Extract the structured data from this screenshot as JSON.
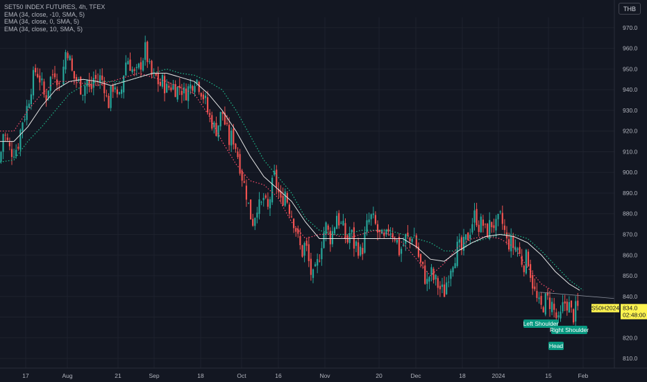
{
  "legend": {
    "title": "SET50 INDEX FUTURES, 4h, TFEX",
    "ema_lines": [
      "EMA (34, close, -10, SMA, 5)",
      "EMA (34, close, 0, SMA, 5)",
      "EMA (34, close, 10, SMA, 5)"
    ]
  },
  "currency": "THB",
  "symbol_tag": "S50H2024",
  "price_tag": {
    "price": "834.0",
    "countdown": "02:48:00"
  },
  "pattern_labels": {
    "left": "Left Shoulder",
    "right": "Right Shoulder",
    "head": "Head"
  },
  "colors": {
    "background": "#131722",
    "bull": "#26a69a",
    "bear": "#ef5350",
    "ema_main": "#e8e8e8",
    "ema_minus": "#ff4d6d",
    "ema_plus": "#1fbf8f",
    "price_tag": "#fff44f",
    "pattern_tag": "#089981"
  },
  "chart_data": {
    "type": "candlestick",
    "y_axis": {
      "range": [
        807,
        975
      ],
      "ticks": [
        "970.0",
        "960.0",
        "950.0",
        "940.0",
        "930.0",
        "920.0",
        "910.0",
        "900.0",
        "890.0",
        "880.0",
        "870.0",
        "860.0",
        "850.0",
        "840.0",
        "830.0",
        "820.0",
        "810.0"
      ]
    },
    "x_axis": {
      "labels": [
        "17",
        "Aug",
        "21",
        "Sep",
        "18",
        "Oct",
        "16",
        "Nov",
        "20",
        "Dec",
        "18",
        "2024",
        "15",
        "Feb"
      ]
    },
    "series": [
      {
        "kind": "close-path",
        "values": [
          [
            0,
            905
          ],
          [
            3,
            915
          ],
          [
            5,
            920
          ],
          [
            10,
            915
          ],
          [
            15,
            910
          ],
          [
            25,
            912
          ],
          [
            32,
            925
          ],
          [
            38,
            930
          ],
          [
            45,
            942
          ],
          [
            52,
            950
          ],
          [
            58,
            945
          ],
          [
            65,
            935
          ],
          [
            72,
            945
          ],
          [
            80,
            950
          ],
          [
            86,
            940
          ],
          [
            92,
            952
          ],
          [
            96,
            962
          ],
          [
            100,
            955
          ],
          [
            105,
            946
          ],
          [
            110,
            945
          ],
          [
            115,
            942
          ],
          [
            120,
            940
          ],
          [
            125,
            945
          ],
          [
            130,
            938
          ],
          [
            135,
            946
          ],
          [
            140,
            944
          ],
          [
            145,
            946
          ],
          [
            150,
            943
          ],
          [
            155,
            932
          ],
          [
            160,
            938
          ],
          [
            165,
            945
          ],
          [
            170,
            932
          ],
          [
            175,
            940
          ],
          [
            180,
            953
          ],
          [
            185,
            955
          ],
          [
            190,
            950
          ],
          [
            195,
            946
          ],
          [
            200,
            950
          ],
          [
            205,
            955
          ],
          [
            210,
            960
          ],
          [
            215,
            950
          ],
          [
            220,
            945
          ],
          [
            225,
            946
          ],
          [
            230,
            942
          ],
          [
            235,
            944
          ],
          [
            240,
            940
          ],
          [
            245,
            942
          ],
          [
            250,
            942
          ],
          [
            255,
            940
          ],
          [
            260,
            942
          ],
          [
            265,
            938
          ],
          [
            270,
            940
          ],
          [
            275,
            942
          ],
          [
            280,
            946
          ],
          [
            285,
            944
          ],
          [
            290,
            940
          ],
          [
            295,
            935
          ],
          [
            300,
            928
          ],
          [
            305,
            925
          ],
          [
            310,
            920
          ],
          [
            315,
            924
          ],
          [
            320,
            930
          ],
          [
            325,
            922
          ],
          [
            330,
            915
          ],
          [
            335,
            918
          ],
          [
            340,
            912
          ],
          [
            345,
            905
          ],
          [
            350,
            896
          ],
          [
            355,
            890
          ],
          [
            360,
            880
          ],
          [
            365,
            876
          ],
          [
            370,
            885
          ],
          [
            375,
            882
          ],
          [
            380,
            888
          ],
          [
            385,
            880
          ],
          [
            390,
            890
          ],
          [
            395,
            898
          ],
          [
            400,
            892
          ],
          [
            405,
            884
          ],
          [
            410,
            892
          ],
          [
            415,
            885
          ],
          [
            420,
            880
          ],
          [
            425,
            875
          ],
          [
            430,
            866
          ],
          [
            435,
            861
          ],
          [
            440,
            866
          ],
          [
            445,
            856
          ],
          [
            450,
            848
          ],
          [
            455,
            852
          ],
          [
            460,
            860
          ],
          [
            465,
            870
          ],
          [
            470,
            874
          ],
          [
            475,
            868
          ],
          [
            480,
            872
          ],
          [
            485,
            880
          ],
          [
            490,
            875
          ],
          [
            495,
            872
          ],
          [
            500,
            866
          ],
          [
            505,
            872
          ],
          [
            510,
            865
          ],
          [
            515,
            865
          ],
          [
            520,
            860
          ],
          [
            525,
            868
          ],
          [
            530,
            876
          ],
          [
            535,
            878
          ],
          [
            540,
            875
          ],
          [
            545,
            870
          ],
          [
            550,
            868
          ],
          [
            555,
            866
          ],
          [
            560,
            874
          ],
          [
            565,
            871
          ],
          [
            570,
            869
          ],
          [
            575,
            862
          ],
          [
            580,
            864
          ],
          [
            585,
            869
          ],
          [
            590,
            866
          ],
          [
            595,
            872
          ],
          [
            600,
            864
          ],
          [
            605,
            856
          ],
          [
            610,
            852
          ],
          [
            615,
            846
          ],
          [
            620,
            852
          ],
          [
            625,
            848
          ],
          [
            630,
            846
          ],
          [
            635,
            843
          ],
          [
            640,
            842
          ],
          [
            645,
            850
          ],
          [
            650,
            856
          ],
          [
            655,
            860
          ],
          [
            660,
            864
          ],
          [
            665,
            862
          ],
          [
            670,
            866
          ],
          [
            675,
            870
          ],
          [
            680,
            876
          ],
          [
            685,
            880
          ],
          [
            690,
            874
          ],
          [
            695,
            876
          ],
          [
            700,
            870
          ],
          [
            705,
            874
          ],
          [
            710,
            876
          ],
          [
            715,
            873
          ],
          [
            720,
            878
          ],
          [
            725,
            874
          ],
          [
            730,
            866
          ],
          [
            735,
            866
          ],
          [
            740,
            864
          ],
          [
            745,
            864
          ],
          [
            750,
            858
          ],
          [
            755,
            856
          ],
          [
            760,
            860
          ],
          [
            765,
            850
          ],
          [
            770,
            842
          ],
          [
            775,
            836
          ],
          [
            780,
            834
          ],
          [
            785,
            838
          ],
          [
            790,
            838
          ],
          [
            795,
            836
          ],
          [
            800,
            831
          ],
          [
            805,
            826
          ],
          [
            810,
            834
          ],
          [
            815,
            838
          ],
          [
            820,
            835
          ],
          [
            825,
            830
          ],
          [
            830,
            834
          ],
          [
            835,
            834
          ]
        ]
      }
    ],
    "ema_main": [
      [
        0,
        915
      ],
      [
        20,
        915
      ],
      [
        40,
        922
      ],
      [
        60,
        932
      ],
      [
        80,
        940
      ],
      [
        100,
        944
      ],
      [
        120,
        945
      ],
      [
        140,
        944
      ],
      [
        160,
        942
      ],
      [
        180,
        944
      ],
      [
        200,
        946
      ],
      [
        220,
        948
      ],
      [
        240,
        948
      ],
      [
        260,
        946
      ],
      [
        280,
        944
      ],
      [
        300,
        938
      ],
      [
        320,
        930
      ],
      [
        340,
        920
      ],
      [
        360,
        908
      ],
      [
        380,
        898
      ],
      [
        400,
        892
      ],
      [
        420,
        886
      ],
      [
        440,
        876
      ],
      [
        460,
        868
      ],
      [
        480,
        868
      ],
      [
        500,
        868
      ],
      [
        520,
        868
      ],
      [
        540,
        868
      ],
      [
        560,
        868
      ],
      [
        580,
        868
      ],
      [
        600,
        864
      ],
      [
        620,
        858
      ],
      [
        640,
        857
      ],
      [
        660,
        862
      ],
      [
        680,
        866
      ],
      [
        700,
        869
      ],
      [
        720,
        870
      ],
      [
        740,
        869
      ],
      [
        760,
        866
      ],
      [
        780,
        860
      ],
      [
        800,
        852
      ],
      [
        820,
        846
      ],
      [
        835,
        843
      ]
    ],
    "ema_minus": [
      [
        0,
        920
      ],
      [
        20,
        920
      ],
      [
        40,
        930
      ],
      [
        60,
        938
      ],
      [
        80,
        944
      ],
      [
        100,
        944
      ],
      [
        120,
        943
      ],
      [
        140,
        942
      ],
      [
        160,
        944
      ],
      [
        180,
        946
      ],
      [
        200,
        948
      ],
      [
        220,
        946
      ],
      [
        240,
        944
      ],
      [
        260,
        941
      ],
      [
        280,
        938
      ],
      [
        300,
        928
      ],
      [
        320,
        915
      ],
      [
        340,
        904
      ],
      [
        360,
        896
      ],
      [
        380,
        894
      ],
      [
        400,
        888
      ],
      [
        420,
        876
      ],
      [
        440,
        868
      ],
      [
        460,
        870
      ],
      [
        480,
        870
      ],
      [
        500,
        868
      ],
      [
        520,
        870
      ],
      [
        540,
        872
      ],
      [
        560,
        870
      ],
      [
        580,
        866
      ],
      [
        600,
        858
      ],
      [
        620,
        850
      ],
      [
        640,
        856
      ],
      [
        660,
        864
      ],
      [
        680,
        868
      ],
      [
        700,
        869
      ],
      [
        720,
        868
      ],
      [
        740,
        864
      ],
      [
        760,
        854
      ],
      [
        780,
        846
      ],
      [
        800,
        842
      ]
    ],
    "ema_plus": [
      [
        0,
        905
      ],
      [
        20,
        906
      ],
      [
        40,
        915
      ],
      [
        60,
        922
      ],
      [
        80,
        930
      ],
      [
        100,
        938
      ],
      [
        120,
        942
      ],
      [
        140,
        944
      ],
      [
        160,
        944
      ],
      [
        180,
        944
      ],
      [
        200,
        946
      ],
      [
        220,
        948
      ],
      [
        240,
        950
      ],
      [
        260,
        948
      ],
      [
        280,
        947
      ],
      [
        300,
        944
      ],
      [
        320,
        940
      ],
      [
        340,
        930
      ],
      [
        360,
        918
      ],
      [
        380,
        906
      ],
      [
        400,
        898
      ],
      [
        420,
        890
      ],
      [
        440,
        878
      ],
      [
        460,
        872
      ],
      [
        480,
        870
      ],
      [
        500,
        870
      ],
      [
        520,
        872
      ],
      [
        540,
        872
      ],
      [
        560,
        872
      ],
      [
        580,
        870
      ],
      [
        600,
        868
      ],
      [
        620,
        866
      ],
      [
        640,
        862
      ],
      [
        660,
        862
      ],
      [
        680,
        866
      ],
      [
        700,
        868
      ],
      [
        720,
        870
      ],
      [
        740,
        870
      ],
      [
        760,
        868
      ],
      [
        780,
        862
      ],
      [
        800,
        855
      ],
      [
        820,
        848
      ],
      [
        840,
        843
      ]
    ]
  }
}
